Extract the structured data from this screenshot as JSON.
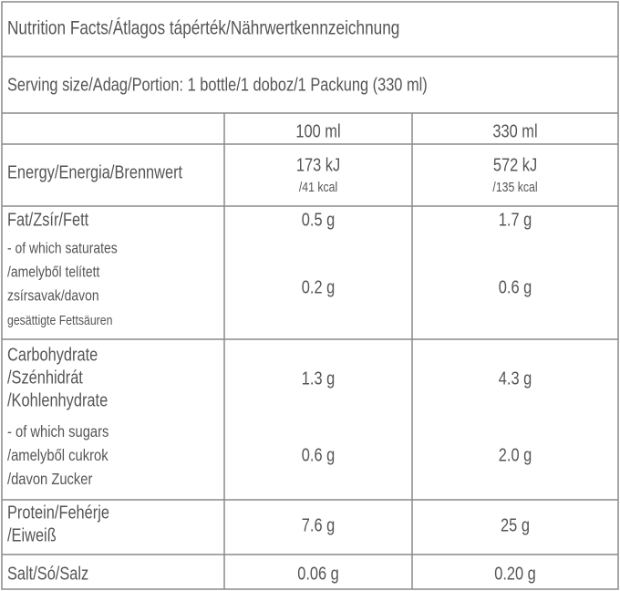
{
  "title": "Nutrition Facts/Átlagos tápérték/Nährwertkennzeichnung",
  "serving": "Serving size/Adag/Portion: 1 bottle/1 doboz/1 Packung (330 ml)",
  "header": [
    "100 ml",
    "330 ml"
  ],
  "rows": [
    {
      "label": [
        "Energy/Energia/Brennwert"
      ],
      "per100": [
        "173 kJ",
        "/41 kcal"
      ],
      "per330": [
        "572 kJ",
        "/135 kcal"
      ]
    },
    {
      "label": [
        "Fat/Zsír/Fett"
      ],
      "per100": [
        "0.5 g"
      ],
      "per330": [
        "1.7 g"
      ]
    },
    {
      "label": [
        "- of which saturates",
        "/amelyből telített",
        "zsírsavak/davon",
        "gesättigte Fettsäuren"
      ],
      "per100": [
        "0.2 g"
      ],
      "per330": [
        "0.6 g"
      ]
    },
    {
      "label": [
        "Carbohydrate",
        "/Szénhidrát",
        "/Kohlenhydrate"
      ],
      "per100": [
        "1.3 g"
      ],
      "per330": [
        "4.3 g"
      ]
    },
    {
      "label": [
        "- of which sugars",
        "/amelyből cukrok",
        "/davon Zucker"
      ],
      "per100": [
        "0.6 g"
      ],
      "per330": [
        "2.0 g"
      ]
    },
    {
      "label": [
        "Protein/Fehérje",
        "/Eiweiß"
      ],
      "per100": [
        "7.6 g"
      ],
      "per330": [
        "25 g"
      ]
    },
    {
      "label": [
        "Salt/Só/Salz"
      ],
      "per100": [
        "0.06 g"
      ],
      "per330": [
        "0.20 g"
      ]
    }
  ]
}
